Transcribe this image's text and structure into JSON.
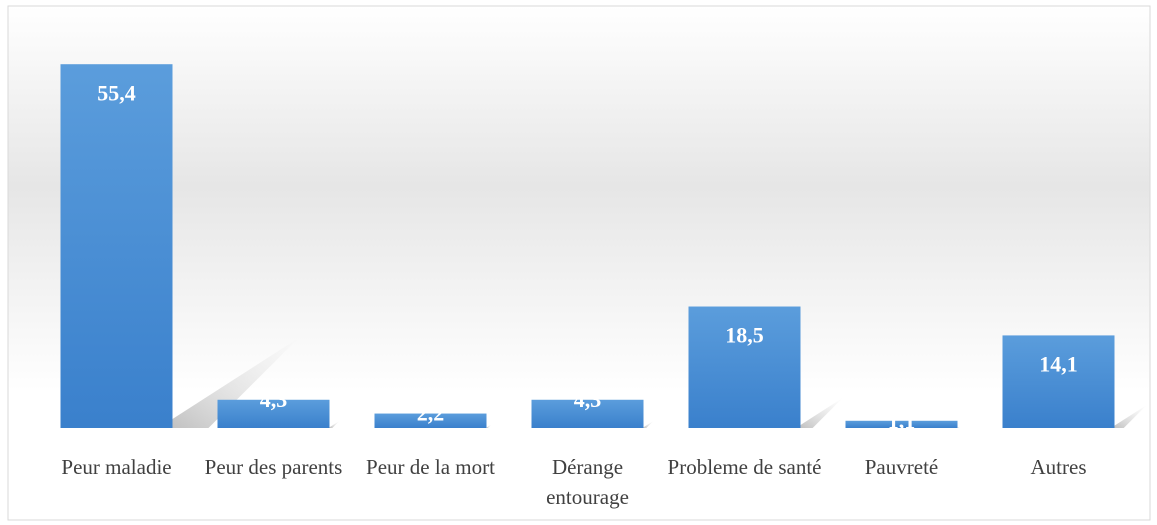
{
  "chart_data": {
    "type": "bar",
    "categories": [
      "Peur maladie",
      "Peur des parents",
      "Peur de la mort",
      "Dérange entourage",
      "Probleme de santé",
      "Pauvreté",
      "Autres"
    ],
    "values": [
      55.4,
      4.3,
      2.2,
      4.3,
      18.5,
      1.1,
      14.1
    ],
    "value_labels": [
      "55,4",
      "4,3",
      "2,2",
      "4,3",
      "18,5",
      "1,1",
      "14,1"
    ],
    "color": "#4a8fd6",
    "ylim": [
      0,
      60
    ]
  }
}
